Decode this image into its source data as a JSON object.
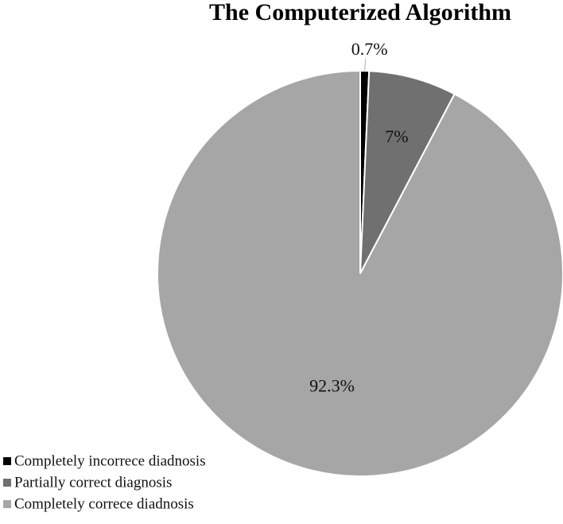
{
  "chart_data": {
    "type": "pie",
    "title": "The Computerized Algorithm",
    "categories": [
      "Completely incorrece diadnosis",
      "Partially correct diagnosis",
      "Completely correce diadnosis"
    ],
    "values": [
      0.7,
      7,
      92.3
    ],
    "data_labels": [
      "0.7%",
      "7%",
      "92.3%"
    ],
    "colors": [
      "#000000",
      "#707070",
      "#a6a6a6"
    ],
    "start_angle": "12 o'clock",
    "direction": "clockwise",
    "legend_position": "bottom-left",
    "slice_border_color": "#ffffff"
  }
}
